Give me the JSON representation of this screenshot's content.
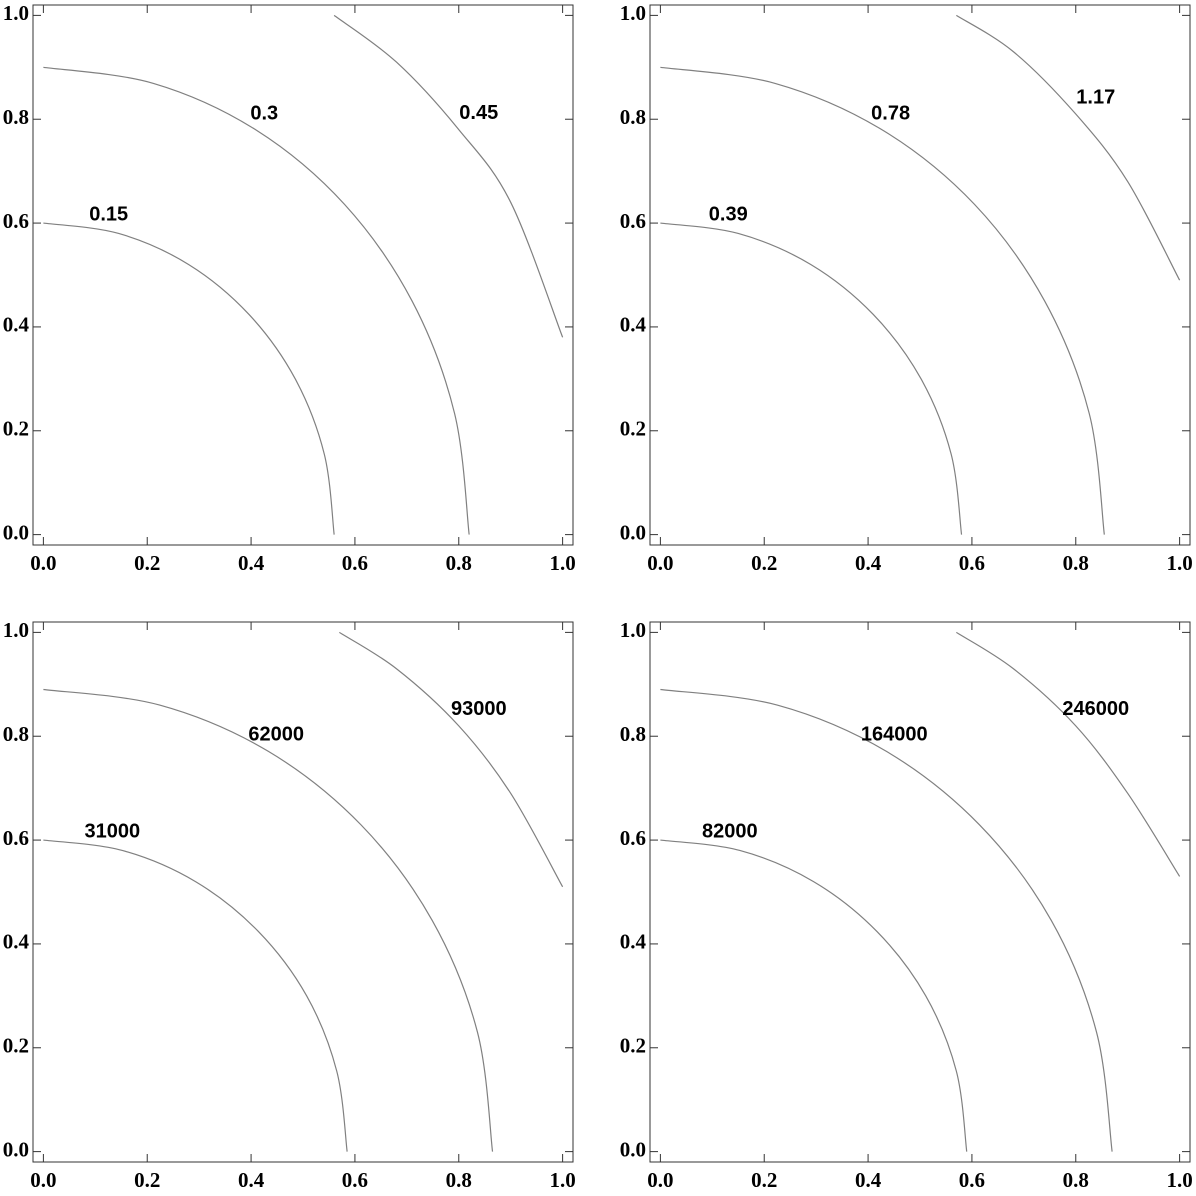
{
  "chart_data": [
    {
      "type": "contour",
      "color": "#808080",
      "xlim": [
        -0.02,
        1.02
      ],
      "ylim": [
        -0.02,
        1.02
      ],
      "xticks": [
        {
          "value": 0,
          "label": "0.0"
        },
        0.2,
        0.4,
        0.6,
        0.8,
        {
          "value": 1,
          "label": "1.0"
        }
      ],
      "yticks": [
        {
          "value": 0,
          "label": "0.0"
        },
        0.2,
        0.4,
        0.6,
        0.8,
        {
          "value": 1,
          "label": "1.0"
        }
      ],
      "contours": [
        {
          "level": 0.15,
          "x": [
            0,
            0.145,
            0.28,
            0.396,
            0.485,
            0.541,
            0.56
          ],
          "y": [
            0.6,
            0.58,
            0.52,
            0.424,
            0.3,
            0.155,
            0
          ]
        },
        {
          "level": 0.3,
          "x": [
            0,
            0.212,
            0.41,
            0.58,
            0.71,
            0.792,
            0.82
          ],
          "y": [
            0.9,
            0.869,
            0.779,
            0.636,
            0.45,
            0.233,
            0
          ]
        },
        {
          "level": 0.45,
          "x": [
            0.56,
            0.68,
            0.8,
            0.9,
            1.0
          ],
          "y": [
            1.0,
            0.91,
            0.78,
            0.64,
            0.38
          ]
        }
      ]
    },
    {
      "type": "contour",
      "color": "#808080",
      "xlim": [
        -0.02,
        1.02
      ],
      "ylim": [
        -0.02,
        1.02
      ],
      "xticks": [
        {
          "value": 0,
          "label": "0.0"
        },
        0.2,
        0.4,
        0.6,
        0.8,
        {
          "value": 1,
          "label": "1.0"
        }
      ],
      "yticks": [
        {
          "value": 0,
          "label": "0.0"
        },
        0.2,
        0.4,
        0.6,
        0.8,
        {
          "value": 1,
          "label": "1.0"
        }
      ],
      "contours": [
        {
          "level": 0.39,
          "x": [
            0,
            0.15,
            0.29,
            0.41,
            0.502,
            0.56,
            0.58
          ],
          "y": [
            0.6,
            0.58,
            0.52,
            0.424,
            0.3,
            0.155,
            0
          ]
        },
        {
          "level": 0.78,
          "x": [
            0,
            0.221,
            0.428,
            0.605,
            0.74,
            0.826,
            0.855
          ],
          "y": [
            0.9,
            0.869,
            0.779,
            0.636,
            0.45,
            0.233,
            0
          ]
        },
        {
          "level": 1.17,
          "x": [
            0.57,
            0.68,
            0.8,
            0.9,
            1.0
          ],
          "y": [
            1.0,
            0.93,
            0.81,
            0.68,
            0.49
          ]
        }
      ]
    },
    {
      "type": "contour",
      "color": "#808080",
      "xlim": [
        -0.02,
        1.02
      ],
      "ylim": [
        -0.02,
        1.02
      ],
      "xticks": [
        {
          "value": 0,
          "label": "0.0"
        },
        0.2,
        0.4,
        0.6,
        0.8,
        {
          "value": 1,
          "label": "1.0"
        }
      ],
      "yticks": [
        {
          "value": 0,
          "label": "0.0"
        },
        0.2,
        0.4,
        0.6,
        0.8,
        {
          "value": 1,
          "label": "1.0"
        }
      ],
      "contours": [
        {
          "level": 31000,
          "x": [
            0,
            0.152,
            0.293,
            0.414,
            0.507,
            0.565,
            0.585
          ],
          "y": [
            0.6,
            0.58,
            0.52,
            0.424,
            0.3,
            0.155,
            0
          ]
        },
        {
          "level": 62000,
          "x": [
            0,
            0.224,
            0.433,
            0.612,
            0.749,
            0.836,
            0.865
          ],
          "y": [
            0.89,
            0.86,
            0.771,
            0.629,
            0.445,
            0.23,
            0
          ]
        },
        {
          "level": 93000,
          "x": [
            0.57,
            0.68,
            0.8,
            0.9,
            1.0
          ],
          "y": [
            1.0,
            0.93,
            0.82,
            0.69,
            0.51
          ]
        }
      ]
    },
    {
      "type": "contour",
      "color": "#808080",
      "xlim": [
        -0.02,
        1.02
      ],
      "ylim": [
        -0.02,
        1.02
      ],
      "xticks": [
        {
          "value": 0,
          "label": "0.0"
        },
        0.2,
        0.4,
        0.6,
        0.8,
        {
          "value": 1,
          "label": "1.0"
        }
      ],
      "yticks": [
        {
          "value": 0,
          "label": "0.0"
        },
        0.2,
        0.4,
        0.6,
        0.8,
        {
          "value": 1,
          "label": "1.0"
        }
      ],
      "contours": [
        {
          "level": 82000,
          "x": [
            0,
            0.153,
            0.295,
            0.417,
            0.511,
            0.57,
            0.59
          ],
          "y": [
            0.6,
            0.58,
            0.52,
            0.424,
            0.3,
            0.155,
            0
          ]
        },
        {
          "level": 164000,
          "x": [
            0,
            0.225,
            0.435,
            0.615,
            0.753,
            0.84,
            0.87
          ],
          "y": [
            0.89,
            0.86,
            0.771,
            0.629,
            0.445,
            0.23,
            0
          ]
        },
        {
          "level": 246000,
          "x": [
            0.57,
            0.68,
            0.8,
            0.9,
            1.0
          ],
          "y": [
            1.0,
            0.93,
            0.82,
            0.69,
            0.53
          ]
        }
      ]
    }
  ]
}
